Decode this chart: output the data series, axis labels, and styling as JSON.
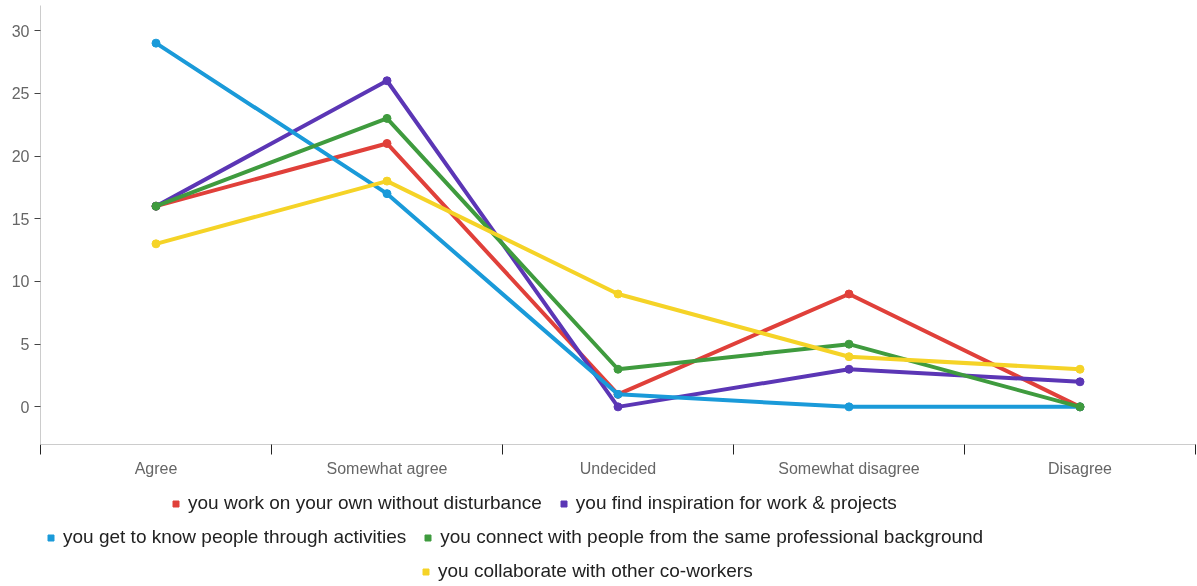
{
  "chart_data": {
    "type": "line",
    "categories": [
      "Agree",
      "Somewhat agree",
      "Undecided",
      "Somewhat disagree",
      "Disagree"
    ],
    "series": [
      {
        "name": "you work on your own without disturbance",
        "color": "#e0403a",
        "values": [
          16,
          21,
          1,
          9,
          0
        ]
      },
      {
        "name": "you find inspiration for work & projects",
        "color": "#5b36b5",
        "values": [
          16,
          26,
          0,
          3,
          2
        ]
      },
      {
        "name": "you get to know people through activities",
        "color": "#1a9ad9",
        "values": [
          29,
          17,
          1,
          0,
          0
        ]
      },
      {
        "name": "you connect with people from the same professional background",
        "color": "#3f9b3e",
        "values": [
          16,
          23,
          3,
          5,
          0
        ]
      },
      {
        "name": "you collaborate with other co-workers",
        "color": "#f5d327",
        "values": [
          13,
          18,
          9,
          4,
          3
        ]
      }
    ],
    "ylim": [
      -3,
      32
    ],
    "yticks": [
      0,
      5,
      10,
      15,
      20,
      25,
      30
    ],
    "grid": false,
    "legend": "bottom",
    "marker": "circle",
    "line_style": "solid"
  }
}
